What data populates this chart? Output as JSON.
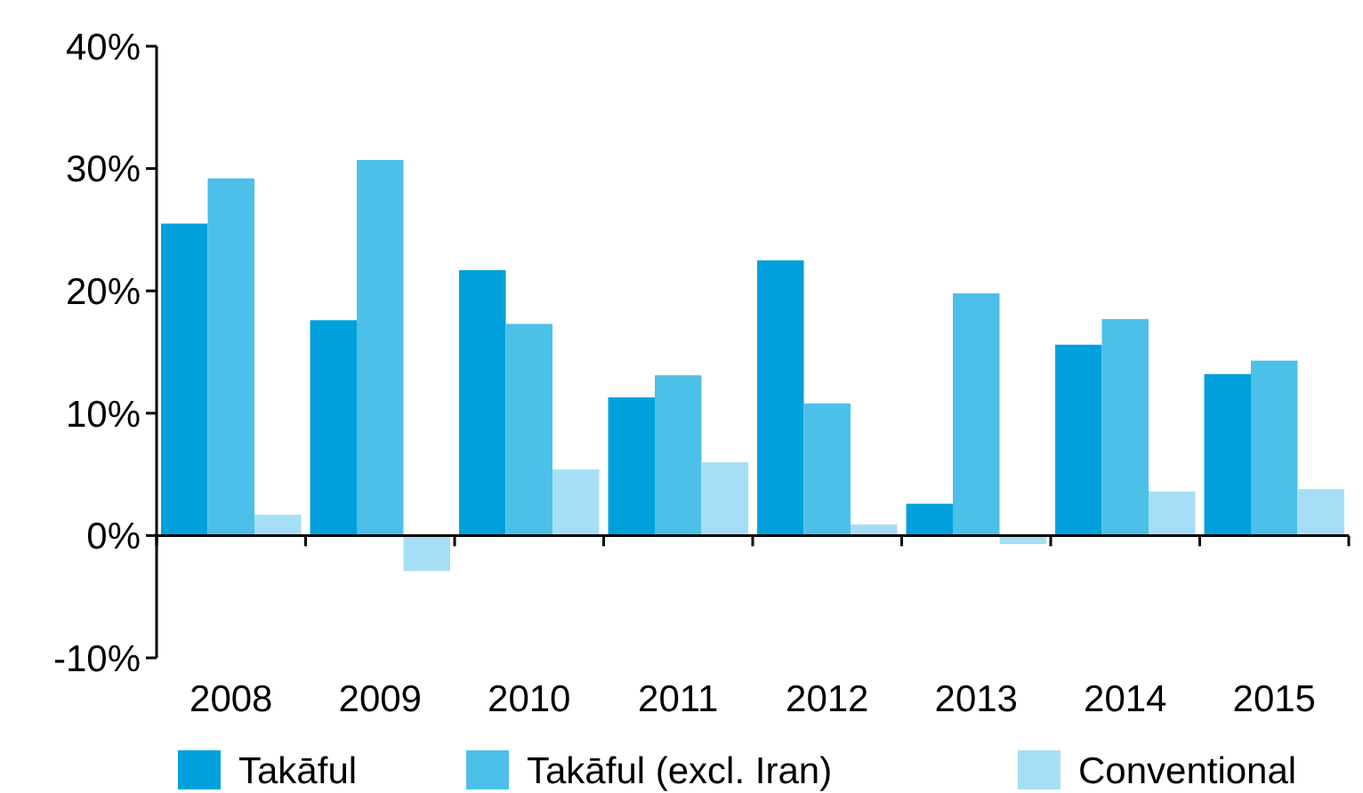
{
  "chart_data": {
    "type": "bar",
    "categories": [
      "2008",
      "2009",
      "2010",
      "2011",
      "2012",
      "2013",
      "2014",
      "2015"
    ],
    "series": [
      {
        "name": "Takāful",
        "color": "#00a0dc",
        "values": [
          25.5,
          17.6,
          21.7,
          11.3,
          22.5,
          2.6,
          15.6,
          13.2
        ]
      },
      {
        "name": "Takāful (excl. Iran)",
        "color": "#4cc0e8",
        "values": [
          29.2,
          30.7,
          17.3,
          13.1,
          10.8,
          19.8,
          17.7,
          14.3
        ]
      },
      {
        "name": "Conventional",
        "color": "#a6dff5",
        "values": [
          1.7,
          -2.9,
          5.4,
          6.0,
          0.9,
          -0.7,
          3.6,
          3.8
        ]
      }
    ],
    "ylim": [
      -10,
      40
    ],
    "yticks": [
      {
        "value": -10,
        "label": "-10%"
      },
      {
        "value": 0,
        "label": "0%"
      },
      {
        "value": 10,
        "label": "10%"
      },
      {
        "value": 20,
        "label": "20%"
      },
      {
        "value": 30,
        "label": "30%"
      },
      {
        "value": 40,
        "label": "40%"
      }
    ],
    "legend": "bottom"
  }
}
